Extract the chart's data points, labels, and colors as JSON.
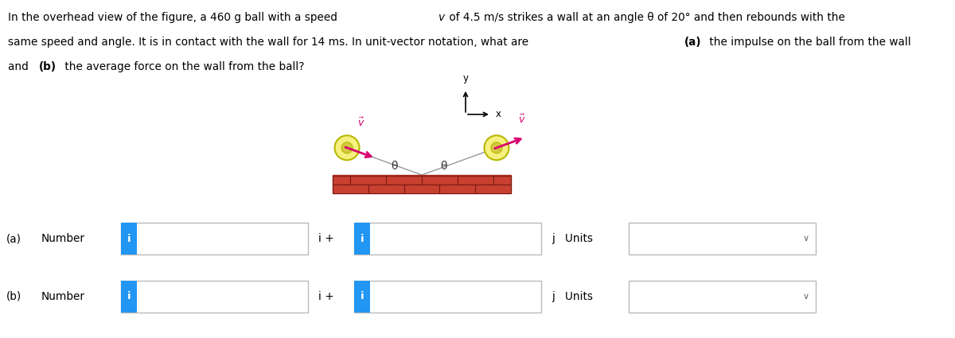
{
  "bg_color": "#ffffff",
  "text_color": "#000000",
  "problem_line1": "In the overhead view of the figure, a 460 g ball with a speed ν of 4.5 m/s strikes a wall at an angle θ of 20° and then rebounds with the",
  "problem_line2": "same speed and angle. It is in contact with the wall for 14 ms. In unit-vector notation, what are (a) the impulse on the ball from the wall",
  "problem_line3": "and (b) the average force on the wall from the ball?",
  "ball_color": "#f5f080",
  "ball_outline": "#b8b800",
  "arrow_color": "#d6006e",
  "wall_dark": "#b03020",
  "wall_light": "#c84030",
  "wall_mortar": "#7a1a10",
  "angle_label": "θ",
  "x_label": "x",
  "y_label": "y",
  "input_tab_color": "#2196F3",
  "row_a_label": "(a)",
  "row_b_label": "(b)"
}
